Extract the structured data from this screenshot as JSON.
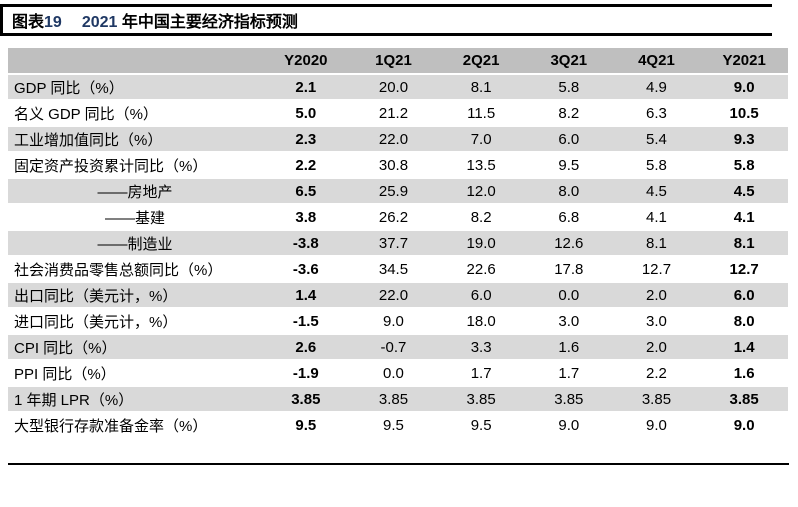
{
  "header_bar": {
    "tag_label": "图表",
    "tag_number": "19",
    "title_year": "2021",
    "title_rest": " 年中国主要经济指标预测"
  },
  "colors": {
    "header_row_bg": "#BFBFBF",
    "alt_row_bg": "#D9D9D9",
    "title_number_accent": "#1F3864",
    "rule_color": "#000000"
  },
  "chart_data": {
    "type": "table",
    "title": "2021 年中国主要经济指标预测",
    "columns": [
      "",
      "Y2020",
      "1Q21",
      "2Q21",
      "3Q21",
      "4Q21",
      "Y2021"
    ],
    "bold_value_columns": [
      "Y2020",
      "Y2021"
    ],
    "rows": [
      {
        "label": "GDP 同比（%）",
        "indent_center": false,
        "values": [
          "2.1",
          "20.0",
          "8.1",
          "5.8",
          "4.9",
          "9.0"
        ]
      },
      {
        "label": "名义 GDP 同比（%）",
        "indent_center": false,
        "values": [
          "5.0",
          "21.2",
          "11.5",
          "8.2",
          "6.3",
          "10.5"
        ]
      },
      {
        "label": "工业增加值同比（%）",
        "indent_center": false,
        "values": [
          "2.3",
          "22.0",
          "7.0",
          "6.0",
          "5.4",
          "9.3"
        ]
      },
      {
        "label": "固定资产投资累计同比（%）",
        "indent_center": false,
        "values": [
          "2.2",
          "30.8",
          "13.5",
          "9.5",
          "5.8",
          "5.8"
        ]
      },
      {
        "label": "——房地产",
        "indent_center": true,
        "values": [
          "6.5",
          "25.9",
          "12.0",
          "8.0",
          "4.5",
          "4.5"
        ]
      },
      {
        "label": "——基建",
        "indent_center": true,
        "values": [
          "3.8",
          "26.2",
          "8.2",
          "6.8",
          "4.1",
          "4.1"
        ]
      },
      {
        "label": "——制造业",
        "indent_center": true,
        "values": [
          "-3.8",
          "37.7",
          "19.0",
          "12.6",
          "8.1",
          "8.1"
        ]
      },
      {
        "label": "社会消费品零售总额同比（%）",
        "indent_center": false,
        "values": [
          "-3.6",
          "34.5",
          "22.6",
          "17.8",
          "12.7",
          "12.7"
        ]
      },
      {
        "label": "出口同比（美元计，%）",
        "indent_center": false,
        "values": [
          "1.4",
          "22.0",
          "6.0",
          "0.0",
          "2.0",
          "6.0"
        ]
      },
      {
        "label": "进口同比（美元计，%）",
        "indent_center": false,
        "values": [
          "-1.5",
          "9.0",
          "18.0",
          "3.0",
          "3.0",
          "8.0"
        ]
      },
      {
        "label": "CPI 同比（%）",
        "indent_center": false,
        "values": [
          "2.6",
          "-0.7",
          "3.3",
          "1.6",
          "2.0",
          "1.4"
        ]
      },
      {
        "label": "PPI 同比（%）",
        "indent_center": false,
        "values": [
          "-1.9",
          "0.0",
          "1.7",
          "1.7",
          "2.2",
          "1.6"
        ]
      },
      {
        "label": "1 年期 LPR（%）",
        "indent_center": false,
        "values": [
          "3.85",
          "3.85",
          "3.85",
          "3.85",
          "3.85",
          "3.85"
        ]
      },
      {
        "label": "大型银行存款准备金率（%）",
        "indent_center": false,
        "values": [
          "9.5",
          "9.5",
          "9.5",
          "9.0",
          "9.0",
          "9.0"
        ]
      }
    ]
  }
}
